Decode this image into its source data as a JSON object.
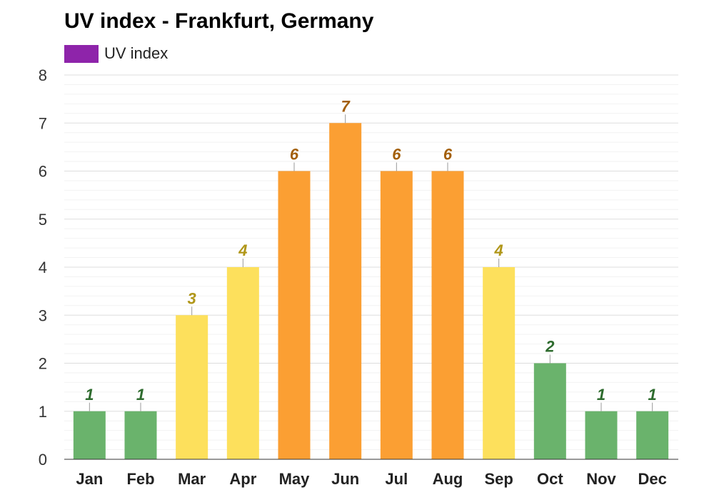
{
  "chart_data": {
    "type": "bar",
    "title": "UV index - Frankfurt, Germany",
    "legend": [
      {
        "name": "UV index",
        "color": "#8e24aa"
      }
    ],
    "legend_position": "top-left",
    "categories": [
      "Jan",
      "Feb",
      "Mar",
      "Apr",
      "May",
      "Jun",
      "Jul",
      "Aug",
      "Sep",
      "Oct",
      "Nov",
      "Dec"
    ],
    "series": [
      {
        "name": "UV index",
        "values": [
          1,
          1,
          3,
          4,
          6,
          7,
          6,
          6,
          4,
          2,
          1,
          1
        ]
      }
    ],
    "xlabel": "",
    "ylabel": "",
    "ylim": [
      0,
      8
    ],
    "yticks": [
      0,
      1,
      2,
      3,
      4,
      5,
      6,
      7,
      8
    ],
    "grid": true,
    "color_scale": [
      {
        "max": 2,
        "fill": "#6ab36c",
        "label_color": "#2e6b2e"
      },
      {
        "max": 5,
        "fill": "#fde05c",
        "label_color": "#b09618"
      },
      {
        "max": 7,
        "fill": "#fb9f33",
        "label_color": "#a35f0a"
      }
    ]
  }
}
